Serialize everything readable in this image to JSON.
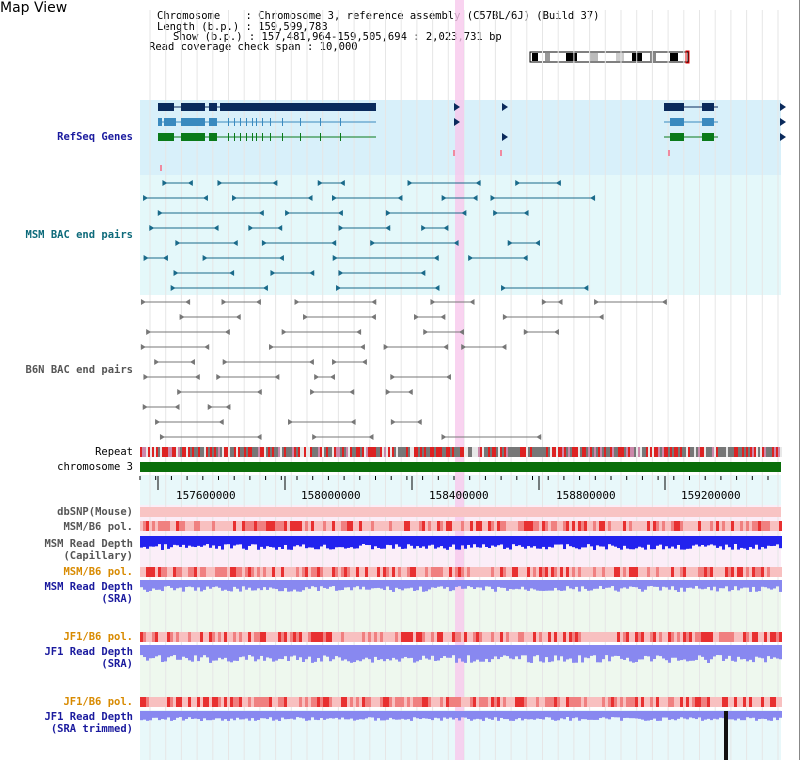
{
  "page": {
    "title": "Map View"
  },
  "info": {
    "chromosome_line": "Chromosome    : Chromosome 3, reference assembly (C57BL/6J) (Build 37)",
    "length_line": "Length (b.p.) : 159,599,783",
    "show_line": "Show (b.p.) : 157,481,964-159,505,694 : 2,023,731 bp",
    "coverage_line": "Read coverage check span : 10,000"
  },
  "tracks": {
    "refseq": "RefSeq Genes",
    "msm_bac": "MSM BAC end pairs",
    "b6n_bac": "B6N BAC end pairs",
    "repeat": "Repeat",
    "chromosome": "chromosome 3",
    "dbsnp": "dbSNP(Mouse)",
    "msm_b6_pol": "MSM/B6 pol.",
    "msm_depth_cap_1": "MSM Read Depth",
    "msm_depth_cap_2": "(Capillary)",
    "msm_b6_pol_2": "MSM/B6 pol.",
    "msm_depth_sra_1": "MSM Read Depth",
    "msm_depth_sra_2": "(SRA)",
    "jf1_b6_pol": "JF1/B6 pol.",
    "jf1_depth_sra_1": "JF1 Read Depth",
    "jf1_depth_sra_2": "(SRA)",
    "jf1_b6_pol_2": "JF1/B6 pol.",
    "jf1_depth_trim_1": "JF1 Read Depth",
    "jf1_depth_trim_2": "(SRA trimmed)"
  },
  "ruler": {
    "ticks": [
      "157600000",
      "158000000",
      "158400000",
      "158800000",
      "159200000"
    ]
  },
  "colors": {
    "refseq_dark": "#0a2a5c",
    "refseq_mid": "#3a8abf",
    "refseq_green": "#0a7a1a",
    "msm_bac": "#1a6a8a",
    "b6n_bac": "#777777",
    "chromosome": "#0a6e0a",
    "highlight": "#f8c8ec",
    "depth_blue": "#2222ee",
    "depth_light": "#8888f0"
  }
}
